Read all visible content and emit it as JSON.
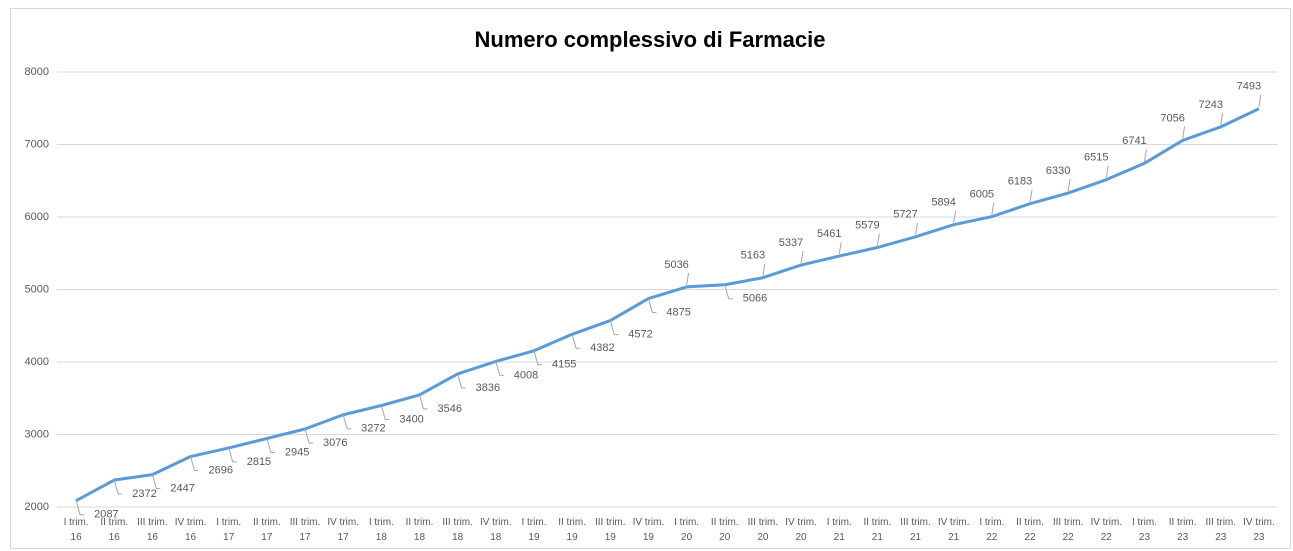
{
  "chart_data": {
    "type": "line",
    "title": "Numero complessivo di Farmacie",
    "categories": [
      "I trim.\n16",
      "II trim.\n16",
      "III trim.\n16",
      "IV trim.\n16",
      "I trim.\n17",
      "II trim.\n17",
      "III trim.\n17",
      "IV trim.\n17",
      "I trim.\n18",
      "II trim.\n18",
      "III trim.\n18",
      "IV trim.\n18",
      "I trim.\n19",
      "II trim.\n19",
      "III trim.\n19",
      "IV trim.\n19",
      "I trim.\n20",
      "II trim.\n20",
      "III trim.\n20",
      "IV trim.\n20",
      "I trim.\n21",
      "II trim.\n21",
      "III trim.\n21",
      "IV trim.\n21",
      "I trim.\n22",
      "II trim.\n22",
      "III trim.\n22",
      "IV trim.\n22",
      "I trim.\n23",
      "II trim.\n23",
      "III trim.\n23",
      "IV trim.\n23"
    ],
    "values": [
      2087,
      2372,
      2447,
      2696,
      2815,
      2945,
      3076,
      3272,
      3400,
      3546,
      3836,
      4008,
      4155,
      4382,
      4572,
      4875,
      5036,
      5066,
      5163,
      5337,
      5461,
      5579,
      5727,
      5894,
      6005,
      6183,
      6330,
      6515,
      6741,
      7056,
      7243,
      7493
    ],
    "color": "#5b9bd5",
    "ylim": [
      2000,
      8000
    ],
    "yticks": [
      2000,
      3000,
      4000,
      5000,
      6000,
      7000,
      8000
    ],
    "grid": true
  }
}
